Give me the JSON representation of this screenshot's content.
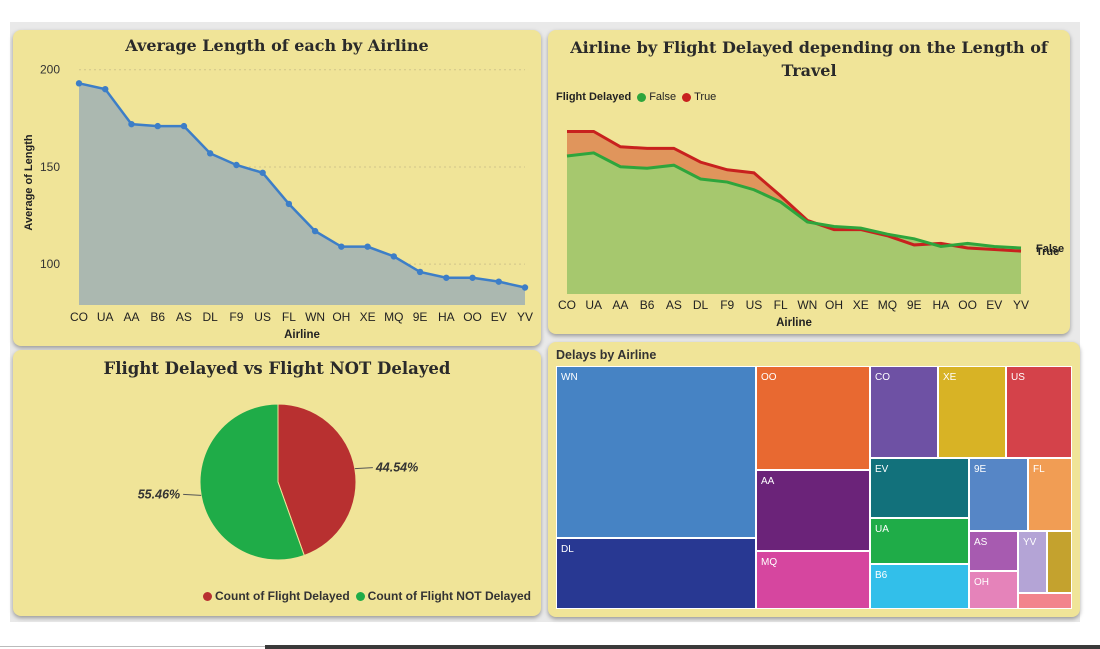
{
  "colors": {
    "panel_bg": "#f0e498",
    "line": "#3d7ec7",
    "area": "#abb8b0",
    "true_line": "#c8211e",
    "true_area": "#e0955c",
    "false_line": "#2ea53c",
    "false_area": "#a6c86e",
    "pie_delayed": "#b83030",
    "pie_not_delayed": "#1fac48"
  },
  "chart_data": [
    {
      "type": "area",
      "title": "Average Length of each by Airline",
      "xlabel": "Airline",
      "ylabel": "Average of Length",
      "ylim": [
        79,
        205
      ],
      "yticks": [
        100,
        150,
        200
      ],
      "grid": true,
      "categories": [
        "CO",
        "UA",
        "AA",
        "B6",
        "AS",
        "DL",
        "F9",
        "US",
        "FL",
        "WN",
        "OH",
        "XE",
        "MQ",
        "9E",
        "HA",
        "OO",
        "EV",
        "YV"
      ],
      "values": [
        193,
        190,
        172,
        171,
        171,
        157,
        151,
        147,
        131,
        117,
        109,
        109,
        104,
        96,
        93,
        93,
        91,
        88
      ]
    },
    {
      "type": "area",
      "title": "Airline by Flight Delayed depending on the Length of Travel",
      "xlabel": "Airline",
      "legend_title": "Flight Delayed",
      "legend_position": "top-left",
      "categories": [
        "CO",
        "UA",
        "AA",
        "B6",
        "AS",
        "DL",
        "F9",
        "US",
        "FL",
        "WN",
        "OH",
        "XE",
        "MQ",
        "9E",
        "HA",
        "OO",
        "EV",
        "YV"
      ],
      "series": [
        {
          "name": "False",
          "values": [
            190,
            192,
            183,
            182,
            184,
            175,
            173,
            168,
            160,
            147,
            144,
            143,
            139,
            136,
            131,
            133,
            131,
            130
          ]
        },
        {
          "name": "True",
          "values": [
            206,
            206,
            196,
            195,
            195,
            186,
            181,
            179,
            164,
            148,
            142,
            142,
            138,
            132,
            133,
            130,
            129,
            128
          ]
        }
      ],
      "end_labels": [
        "True",
        "False"
      ]
    },
    {
      "type": "pie",
      "title": "Flight Delayed vs Flight NOT Delayed",
      "labels": [
        "Count of Flight Delayed",
        "Count of Flight NOT Delayed"
      ],
      "values": [
        44.54,
        55.46
      ],
      "value_labels": [
        "44.54%",
        "55.46%"
      ],
      "legend_position": "bottom-right"
    },
    {
      "type": "treemap",
      "title": "Delays by Airline",
      "labels": [
        "WN",
        "DL",
        "OO",
        "AA",
        "MQ",
        "CO",
        "XE",
        "US",
        "EV",
        "9E",
        "FL",
        "UA",
        "B6",
        "AS",
        "YV",
        "OH"
      ],
      "colors": [
        "#4683c4",
        "#283892",
        "#e86931",
        "#6b2379",
        "#d6469f",
        "#6e51a4",
        "#d8b325",
        "#d4424a",
        "#12717b",
        "#5686c6",
        "#f19d54",
        "#1fac48",
        "#32bfea",
        "#a75bb0",
        "#b4a4d6",
        "#e583ba"
      ]
    }
  ]
}
